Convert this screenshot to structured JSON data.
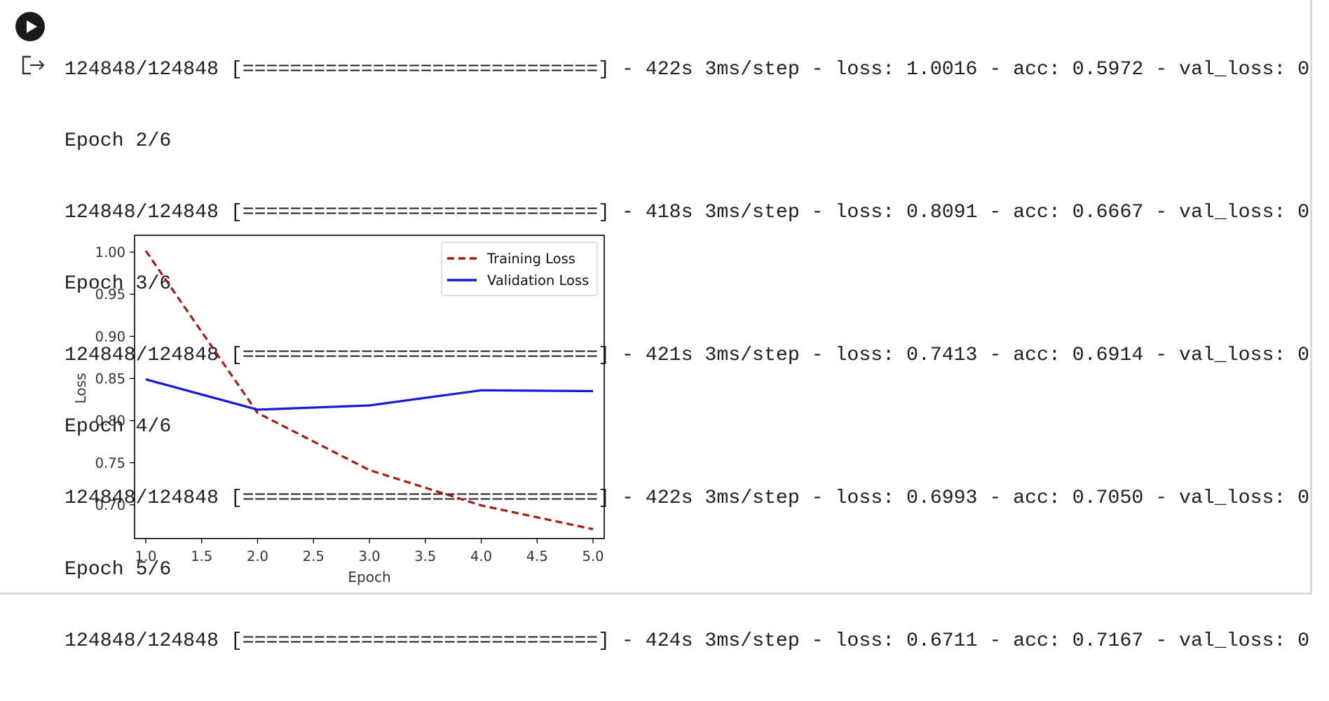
{
  "cell": {
    "run_button": "run-cell",
    "output_icon": "output-redirect"
  },
  "log_lines": [
    "124848/124848 [==============================] - 422s 3ms/step - loss: 1.0016 - acc: 0.5972 - val_loss: 0.",
    "Epoch 2/6",
    "124848/124848 [==============================] - 418s 3ms/step - loss: 0.8091 - acc: 0.6667 - val_loss: 0.",
    "Epoch 3/6",
    "124848/124848 [==============================] - 421s 3ms/step - loss: 0.7413 - acc: 0.6914 - val_loss: 0.",
    "Epoch 4/6",
    "124848/124848 [==============================] - 422s 3ms/step - loss: 0.6993 - acc: 0.7050 - val_loss: 0.",
    "Epoch 5/6",
    "124848/124848 [==============================] - 424s 3ms/step - loss: 0.6711 - acc: 0.7167 - val_loss: 0."
  ],
  "chart_data": {
    "type": "line",
    "title": "",
    "xlabel": "Epoch",
    "ylabel": "Loss",
    "xlim": [
      0.9,
      5.1
    ],
    "ylim": [
      0.66,
      1.02
    ],
    "xticks": [
      1.0,
      1.5,
      2.0,
      2.5,
      3.0,
      3.5,
      4.0,
      4.5,
      5.0
    ],
    "xtick_labels": [
      "1.0",
      "1.5",
      "2.0",
      "2.5",
      "3.0",
      "3.5",
      "4.0",
      "4.5",
      "5.0"
    ],
    "yticks": [
      0.7,
      0.75,
      0.8,
      0.85,
      0.9,
      0.95,
      1.0
    ],
    "ytick_labels": [
      "0.70",
      "0.75",
      "0.80",
      "0.85",
      "0.90",
      "0.95",
      "1.00"
    ],
    "grid": false,
    "legend_position": "top-right",
    "x": [
      1,
      2,
      3,
      4,
      5
    ],
    "series": [
      {
        "name": "Training Loss",
        "values": [
          1.0016,
          0.8091,
          0.7413,
          0.6993,
          0.6711
        ],
        "color": "#a61c12",
        "style": "dashed"
      },
      {
        "name": "Validation Loss",
        "values": [
          0.849,
          0.813,
          0.818,
          0.836,
          0.835
        ],
        "color": "#1717d6",
        "style": "solid"
      }
    ]
  }
}
